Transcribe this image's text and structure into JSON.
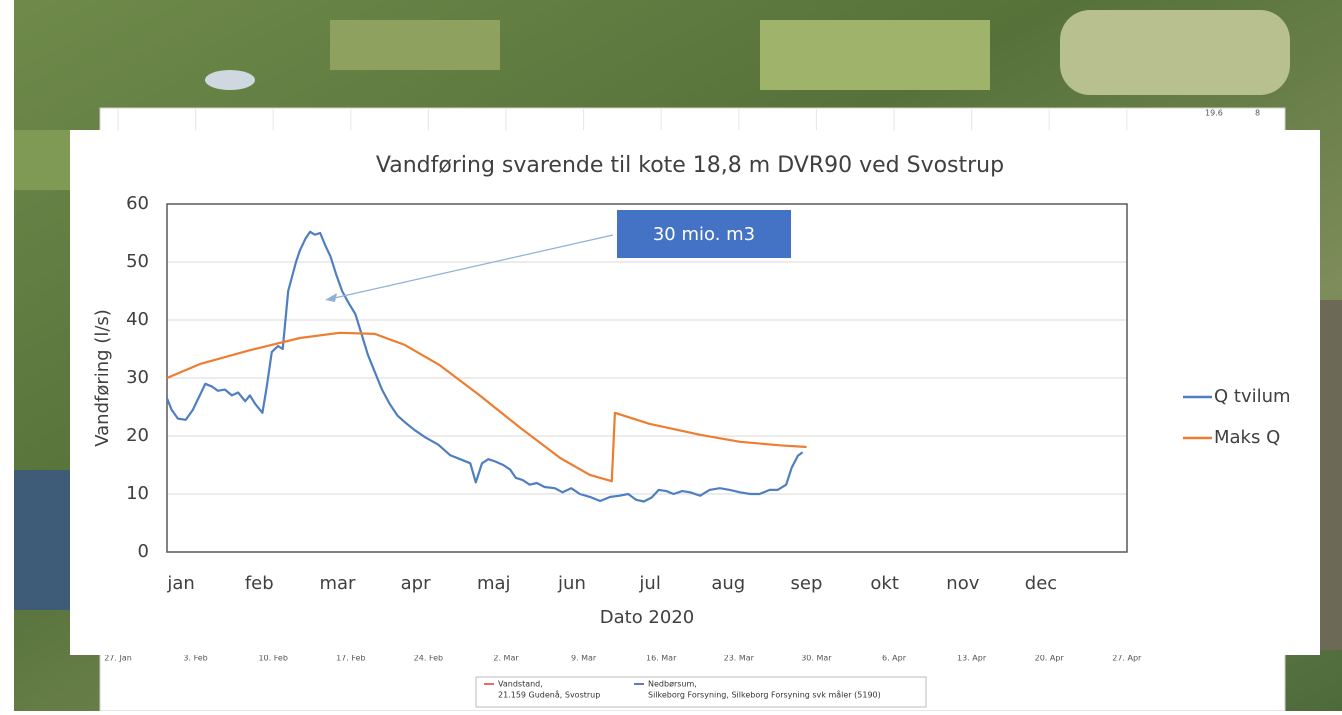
{
  "background_chart": {
    "x_labels": [
      "27. Jan",
      "3. Feb",
      "10. Feb",
      "17. Feb",
      "24. Feb",
      "2. Mar",
      "9. Mar",
      "16. Mar",
      "23. Mar",
      "30. Mar",
      "6. Apr",
      "13. Apr",
      "20. Apr",
      "27. Apr"
    ],
    "side_labels": [
      "19.6",
      "8"
    ],
    "legend": [
      {
        "color": "#e53935",
        "lines": [
          "Vandstand,",
          "21.159 Gudenå, Svostrup"
        ]
      },
      {
        "color": "#3949ab",
        "lines": [
          "Nedbørsum,",
          "Silkeborg Forsyning, Silkeborg Forsyning svk måler (5190)"
        ]
      }
    ]
  },
  "chart_data": {
    "type": "line",
    "title": "Vandføring svarende til kote 18,8 m DVR90 ved Svostrup",
    "x_label": "Dato 2020",
    "y_label": "Vandføring (l/s)",
    "annotation": "30 mio. m3",
    "xlim": [
      -0.18,
      12.1
    ],
    "xticks": [
      {
        "value": 0,
        "label": "jan"
      },
      {
        "value": 1,
        "label": "feb"
      },
      {
        "value": 2,
        "label": "mar"
      },
      {
        "value": 3,
        "label": "apr"
      },
      {
        "value": 4,
        "label": "maj"
      },
      {
        "value": 5,
        "label": "jun"
      },
      {
        "value": 6,
        "label": "jul"
      },
      {
        "value": 7,
        "label": "aug"
      },
      {
        "value": 8,
        "label": "sep"
      },
      {
        "value": 9,
        "label": "okt"
      },
      {
        "value": 10,
        "label": "nov"
      },
      {
        "value": 11,
        "label": "dec"
      }
    ],
    "ylim": [
      0,
      60
    ],
    "yticks": [
      0,
      10,
      20,
      30,
      40,
      50,
      60
    ],
    "grid": true,
    "legend": "right",
    "series": [
      {
        "name": "Q tvilum",
        "color": "#4f7fc0",
        "x": [
          -0.18,
          -0.12,
          -0.04,
          0.06,
          0.15,
          0.24,
          0.31,
          0.4,
          0.47,
          0.56,
          0.65,
          0.73,
          0.82,
          0.88,
          0.95,
          1.04,
          1.09,
          1.16,
          1.24,
          1.3,
          1.37,
          1.42,
          1.47,
          1.52,
          1.59,
          1.65,
          1.71,
          1.78,
          1.84,
          1.91,
          1.98,
          2.06,
          2.14,
          2.23,
          2.31,
          2.39,
          2.48,
          2.57,
          2.67,
          2.77,
          2.86,
          2.99,
          3.12,
          3.29,
          3.44,
          3.59,
          3.7,
          3.77,
          3.85,
          3.93,
          4.02,
          4.12,
          4.21,
          4.28,
          4.37,
          4.46,
          4.55,
          4.65,
          4.78,
          4.88,
          4.99,
          5.1,
          5.23,
          5.36,
          5.49,
          5.61,
          5.72,
          5.82,
          5.92,
          6.02,
          6.11,
          6.21,
          6.3,
          6.41,
          6.51,
          6.64,
          6.76,
          6.89,
          7.02,
          7.15,
          7.28,
          7.4,
          7.53,
          7.63,
          7.74,
          7.81,
          7.89,
          7.95
        ],
        "values": [
          26.5,
          24.5,
          23,
          22.8,
          24.5,
          27,
          29,
          28.5,
          27.8,
          28,
          27,
          27.5,
          26,
          27,
          25.5,
          24,
          28,
          34.5,
          35.5,
          35,
          45,
          47.5,
          50,
          52,
          54,
          55.2,
          54.7,
          55,
          53,
          51,
          48,
          45,
          43,
          41,
          37.5,
          34,
          31,
          28,
          25.5,
          23.5,
          22.4,
          21,
          19.8,
          18.5,
          16.7,
          15.9,
          15.3,
          12,
          15.3,
          16,
          15.6,
          15,
          14.2,
          12.8,
          12.4,
          11.6,
          11.9,
          11.2,
          11,
          10.3,
          11,
          10,
          9.5,
          8.8,
          9.5,
          9.7,
          10,
          9,
          8.7,
          9.4,
          10.7,
          10.5,
          10,
          10.5,
          10.3,
          9.7,
          10.7,
          11,
          10.7,
          10.3,
          10,
          10,
          10.7,
          10.7,
          11.6,
          14.5,
          16.6,
          17.2
        ]
      },
      {
        "name": "Maks Q",
        "color": "#ed7d31",
        "x": [
          -0.18,
          0.24,
          0.88,
          1.52,
          2.03,
          2.48,
          2.86,
          3.31,
          3.82,
          4.34,
          4.85,
          5.23,
          5.51,
          5.55,
          5.99,
          6.64,
          7.15,
          7.66,
          8.0
        ],
        "values": [
          30,
          32.4,
          34.8,
          36.9,
          37.8,
          37.6,
          35.7,
          32.2,
          27,
          21.4,
          16.2,
          13.3,
          12.2,
          24,
          22.1,
          20.2,
          19,
          18.4,
          18.1
        ]
      }
    ]
  }
}
